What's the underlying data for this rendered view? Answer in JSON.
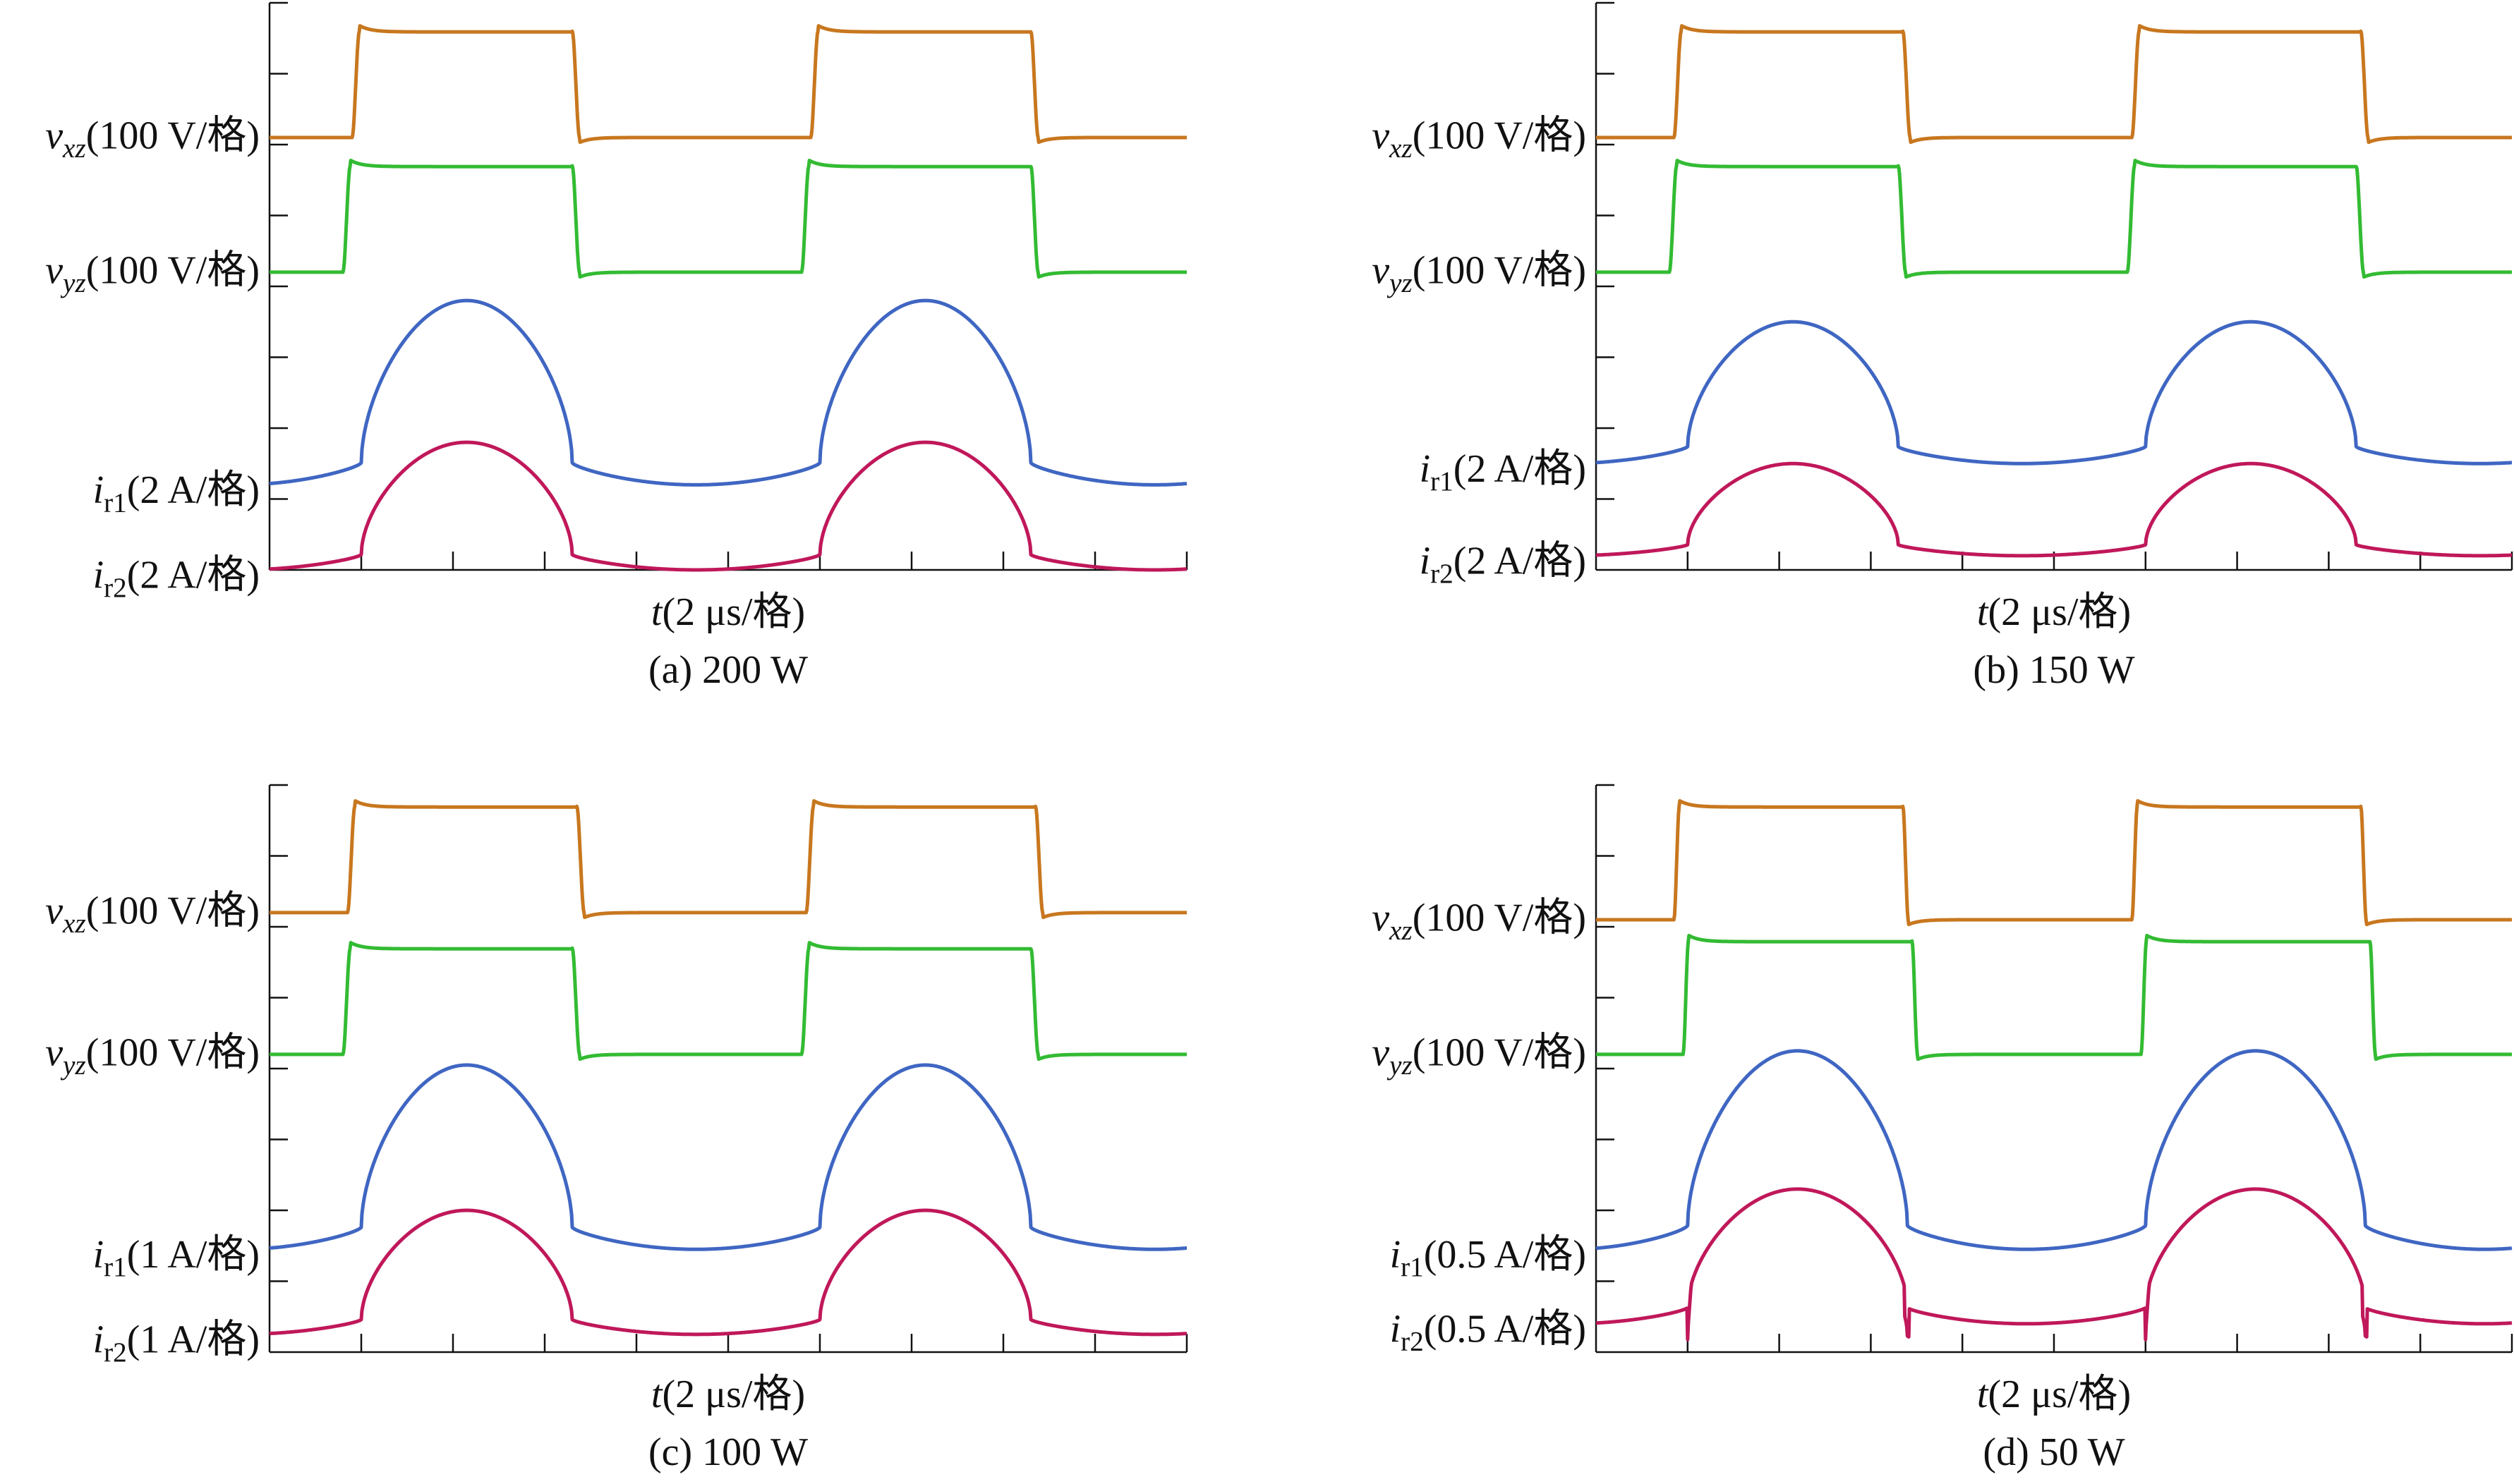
{
  "figure": {
    "panels": [
      {
        "caption": "(a) 200 W",
        "time_axis": {
          "var": "t",
          "unit": "(2 μs/格)"
        },
        "channels": [
          {
            "key": "vxz",
            "var": "v",
            "sub": "xz",
            "sub_italic": true,
            "scale": "(100 V/格)",
            "color": "#c8771f"
          },
          {
            "key": "vyz",
            "var": "v",
            "sub": "yz",
            "sub_italic": true,
            "scale": "(100 V/格)",
            "color": "#33bb33"
          },
          {
            "key": "ir1",
            "var": "i",
            "sub": "r1",
            "sub_italic": false,
            "scale": "(2 A/格)",
            "color": "#3f66c2"
          },
          {
            "key": "ir2",
            "var": "i",
            "sub": "r2",
            "sub_italic": false,
            "scale": "(2 A/格)",
            "color": "#c0185a"
          }
        ]
      },
      {
        "caption": "(b) 150 W",
        "time_axis": {
          "var": "t",
          "unit": "(2 μs/格)"
        },
        "channels": [
          {
            "key": "vxz",
            "var": "v",
            "sub": "xz",
            "sub_italic": true,
            "scale": "(100 V/格)",
            "color": "#c8771f"
          },
          {
            "key": "vyz",
            "var": "v",
            "sub": "yz",
            "sub_italic": true,
            "scale": "(100 V/格)",
            "color": "#33bb33"
          },
          {
            "key": "ir1",
            "var": "i",
            "sub": "r1",
            "sub_italic": false,
            "scale": "(2 A/格)",
            "color": "#3f66c2"
          },
          {
            "key": "ir2",
            "var": "i",
            "sub": "r2",
            "sub_italic": false,
            "scale": "(2 A/格)",
            "color": "#c0185a"
          }
        ]
      },
      {
        "caption": "(c) 100 W",
        "time_axis": {
          "var": "t",
          "unit": "(2 μs/格)"
        },
        "channels": [
          {
            "key": "vxz",
            "var": "v",
            "sub": "xz",
            "sub_italic": true,
            "scale": "(100 V/格)",
            "color": "#c8771f"
          },
          {
            "key": "vyz",
            "var": "v",
            "sub": "yz",
            "sub_italic": true,
            "scale": "(100 V/格)",
            "color": "#33bb33"
          },
          {
            "key": "ir1",
            "var": "i",
            "sub": "r1",
            "sub_italic": false,
            "scale": "(1 A/格)",
            "color": "#3f66c2"
          },
          {
            "key": "ir2",
            "var": "i",
            "sub": "r2",
            "sub_italic": false,
            "scale": "(1 A/格)",
            "color": "#c0185a"
          }
        ]
      },
      {
        "caption": "(d) 50 W",
        "time_axis": {
          "var": "t",
          "unit": "(2 μs/格)"
        },
        "channels": [
          {
            "key": "vxz",
            "var": "v",
            "sub": "xz",
            "sub_italic": true,
            "scale": "(100 V/格)",
            "color": "#c8771f"
          },
          {
            "key": "vyz",
            "var": "v",
            "sub": "yz",
            "sub_italic": true,
            "scale": "(100 V/格)",
            "color": "#33bb33"
          },
          {
            "key": "ir1",
            "var": "i",
            "sub": "r1",
            "sub_italic": false,
            "scale": "(0.5 A/格)",
            "color": "#3f66c2"
          },
          {
            "key": "ir2",
            "var": "i",
            "sub": "r2",
            "sub_italic": false,
            "scale": "(0.5 A/格)",
            "color": "#c0185a"
          }
        ]
      }
    ]
  },
  "chart_data": [
    {
      "type": "line",
      "title": "(a) 200 W",
      "xlabel": "t(2 μs/格)",
      "x_unit_per_div_us": 2,
      "x_divisions": 10,
      "y_divisions": 8,
      "grid": false,
      "period_div": 5,
      "series": [
        {
          "name": "v_xz",
          "scale": "100 V/格",
          "baseline_div": 6.1,
          "amplitude_div": 1.5,
          "shape": "square",
          "rise_div": 0.9,
          "fall_div": 3.3,
          "edge_div": 0.08
        },
        {
          "name": "v_yz",
          "scale": "100 V/格",
          "baseline_div": 4.2,
          "amplitude_div": 1.5,
          "shape": "square",
          "rise_div": 0.8,
          "fall_div": 3.3,
          "edge_div": 0.08
        },
        {
          "name": "i_r1",
          "scale": "2 A/格",
          "baseline_div": 1.2,
          "amplitude_div": 2.6,
          "shape": "resonant",
          "rise_div": 1.0,
          "fall_div": 3.3
        },
        {
          "name": "i_r2",
          "scale": "2 A/格",
          "baseline_div": 0.0,
          "amplitude_div": 1.8,
          "shape": "resonant",
          "rise_div": 1.0,
          "fall_div": 3.3
        }
      ]
    },
    {
      "type": "line",
      "title": "(b) 150 W",
      "xlabel": "t(2 μs/格)",
      "x_unit_per_div_us": 2,
      "x_divisions": 10,
      "y_divisions": 8,
      "grid": false,
      "period_div": 5,
      "series": [
        {
          "name": "v_xz",
          "scale": "100 V/格",
          "baseline_div": 6.1,
          "amplitude_div": 1.5,
          "shape": "square",
          "rise_div": 0.85,
          "fall_div": 3.35,
          "edge_div": 0.08
        },
        {
          "name": "v_yz",
          "scale": "100 V/格",
          "baseline_div": 4.2,
          "amplitude_div": 1.5,
          "shape": "square",
          "rise_div": 0.8,
          "fall_div": 3.3,
          "edge_div": 0.08
        },
        {
          "name": "i_r1",
          "scale": "2 A/格",
          "baseline_div": 1.5,
          "amplitude_div": 2.0,
          "shape": "resonant",
          "rise_div": 1.0,
          "fall_div": 3.3
        },
        {
          "name": "i_r2",
          "scale": "2 A/格",
          "baseline_div": 0.2,
          "amplitude_div": 1.3,
          "shape": "resonant",
          "rise_div": 1.0,
          "fall_div": 3.3
        }
      ]
    },
    {
      "type": "line",
      "title": "(c) 100 W",
      "xlabel": "t(2 μs/格)",
      "x_unit_per_div_us": 2,
      "x_divisions": 10,
      "y_divisions": 8,
      "grid": false,
      "period_div": 5,
      "series": [
        {
          "name": "v_xz",
          "scale": "100 V/格",
          "baseline_div": 6.2,
          "amplitude_div": 1.5,
          "shape": "square",
          "rise_div": 0.85,
          "fall_div": 3.35,
          "edge_div": 0.08
        },
        {
          "name": "v_yz",
          "scale": "100 V/格",
          "baseline_div": 4.2,
          "amplitude_div": 1.5,
          "shape": "square",
          "rise_div": 0.8,
          "fall_div": 3.3,
          "edge_div": 0.08
        },
        {
          "name": "i_r1",
          "scale": "1 A/格",
          "baseline_div": 1.45,
          "amplitude_div": 2.6,
          "shape": "resonant",
          "rise_div": 1.0,
          "fall_div": 3.3
        },
        {
          "name": "i_r2",
          "scale": "1 A/格",
          "baseline_div": 0.25,
          "amplitude_div": 1.75,
          "shape": "resonant",
          "rise_div": 1.0,
          "fall_div": 3.3
        }
      ]
    },
    {
      "type": "line",
      "title": "(d) 50 W",
      "xlabel": "t(2 μs/格)",
      "x_unit_per_div_us": 2,
      "x_divisions": 10,
      "y_divisions": 8,
      "grid": false,
      "period_div": 5,
      "series": [
        {
          "name": "v_xz",
          "scale": "100 V/格",
          "baseline_div": 6.1,
          "amplitude_div": 1.6,
          "shape": "square",
          "rise_div": 0.85,
          "fall_div": 3.35,
          "edge_div": 0.06
        },
        {
          "name": "v_yz",
          "scale": "100 V/格",
          "baseline_div": 4.2,
          "amplitude_div": 1.6,
          "shape": "square",
          "rise_div": 0.95,
          "fall_div": 3.45,
          "edge_div": 0.06
        },
        {
          "name": "i_r1",
          "scale": "0.5 A/格",
          "baseline_div": 1.45,
          "amplitude_div": 2.8,
          "shape": "resonant",
          "rise_div": 1.0,
          "fall_div": 3.4
        },
        {
          "name": "i_r2",
          "scale": "0.5 A/格",
          "baseline_div": 0.4,
          "amplitude_div": 1.9,
          "shape": "resonant_spiky",
          "rise_div": 1.0,
          "fall_div": 3.4
        }
      ]
    }
  ]
}
